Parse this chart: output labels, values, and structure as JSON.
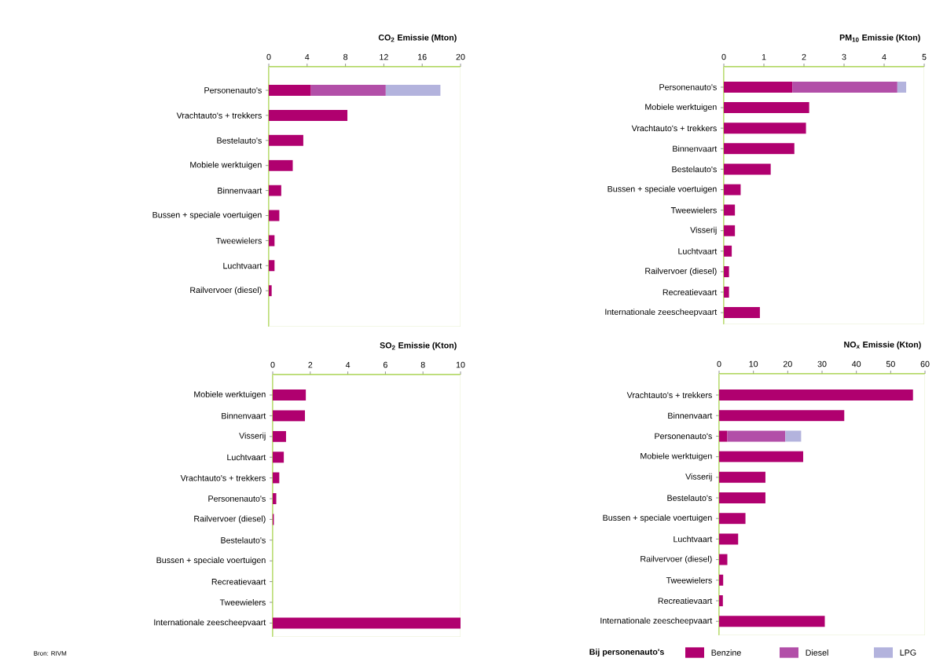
{
  "chart_data": [
    {
      "type": "bar",
      "orientation": "horizontal",
      "stacked": true,
      "title": "CO$_{2}$ Emissie (Mton)",
      "categories": [
        "Personenauto's",
        "Vrachtauto's + trekkers",
        "Bestelauto's",
        "Mobiele werktuigen",
        "Binnenvaart",
        "Bussen + speciale voertuigen",
        "Tweewielers",
        "Luchtvaart",
        "Railvervoer (diesel)"
      ],
      "series": [
        {
          "color": "#b0006f",
          "values": [
            4.4,
            8.2,
            3.6,
            2.5,
            1.3,
            1.1,
            0.6,
            0.6,
            0.3
          ]
        },
        {
          "color": "#b24fa8",
          "values": [
            7.8,
            null,
            null,
            null,
            null,
            null,
            null,
            null,
            null
          ]
        },
        {
          "color": "#b3b3dd",
          "values": [
            5.7,
            null,
            null,
            null,
            null,
            null,
            null,
            null,
            null
          ]
        }
      ],
      "xlim": [
        0,
        20
      ],
      "xticks": [
        0,
        4,
        8,
        12,
        16,
        20
      ]
    },
    {
      "type": "bar",
      "orientation": "horizontal",
      "stacked": true,
      "title": "PM$_{10}$ Emissie (Kton)",
      "categories": [
        "Personenauto's",
        "Mobiele werktuigen",
        "Vrachtauto's + trekkers",
        "Binnenvaart",
        "Bestelauto's",
        "Bussen + speciale voertuigen",
        "Tweewielers",
        "Visserij",
        "Luchtvaart",
        "Railvervoer (diesel)",
        "Recreatievaart",
        "Internationale zeescheepvaart"
      ],
      "series": [
        {
          "color": "#b0006f",
          "values": [
            1.71,
            2.13,
            2.05,
            1.76,
            1.17,
            0.42,
            0.28,
            0.28,
            0.2,
            0.13,
            0.13,
            0.9
          ]
        },
        {
          "color": "#b24fa8",
          "values": [
            2.62,
            null,
            null,
            null,
            null,
            null,
            null,
            null,
            null,
            null,
            null,
            null
          ]
        },
        {
          "color": "#b3b3dd",
          "values": [
            0.22,
            null,
            null,
            null,
            null,
            null,
            null,
            null,
            null,
            null,
            null,
            null
          ]
        }
      ],
      "xlim": [
        0,
        5
      ],
      "xticks": [
        0,
        1,
        2,
        3,
        4,
        5
      ]
    },
    {
      "type": "bar",
      "orientation": "horizontal",
      "stacked": true,
      "title": "SO$_{2}$ Emissie (Kton)",
      "categories": [
        "Mobiele werktuigen",
        "Binnenvaart",
        "Visserij",
        "Luchtvaart",
        "Vrachtauto's + trekkers",
        "Personenauto's",
        "Railvervoer (diesel)",
        "Bestelauto's",
        "Bussen + speciale voertuigen",
        "Recreatievaart",
        "Tweewielers",
        "Internationale zeescheepvaart"
      ],
      "series": [
        {
          "color": "#b0006f",
          "values": [
            1.77,
            1.72,
            0.71,
            0.6,
            0.35,
            0.19,
            0.06,
            0,
            0,
            0,
            0,
            10
          ]
        }
      ],
      "xlim": [
        0,
        10
      ],
      "xticks": [
        0,
        2,
        4,
        6,
        8,
        10
      ],
      "annotations": [
        "Bron: RIVM"
      ]
    },
    {
      "type": "bar",
      "orientation": "horizontal",
      "stacked": true,
      "title": "NO$_{x}$ Emissie (Kton)",
      "categories": [
        "Vrachtauto's + trekkers",
        "Binnenvaart",
        "Personenauto's",
        "Mobiele werktuigen",
        "Visserij",
        "Bestelauto's",
        "Bussen + speciale voertuigen",
        "Luchtvaart",
        "Railvervoer (diesel)",
        "Tweewielers",
        "Recreatievaart",
        "Internationale zeescheepvaart"
      ],
      "series": [
        {
          "name": "Benzine",
          "color": "#b0006f",
          "values": [
            56.5,
            36.5,
            2.4,
            24.5,
            13.5,
            13.5,
            7.7,
            5.6,
            2.4,
            1.2,
            1.1,
            30.8
          ]
        },
        {
          "name": "Diesel",
          "color": "#b24fa8",
          "values": [
            null,
            null,
            16.9,
            null,
            null,
            null,
            null,
            null,
            null,
            null,
            null,
            null
          ]
        },
        {
          "name": "LPG",
          "color": "#b3b3dd",
          "values": [
            null,
            null,
            4.6,
            null,
            null,
            null,
            null,
            null,
            null,
            null,
            null,
            null
          ]
        }
      ],
      "xlim": [
        0,
        60
      ],
      "xticks": [
        0,
        10,
        20,
        30,
        40,
        50,
        60
      ],
      "legend": "bottom",
      "legend_title": "Bij personenauto's"
    }
  ]
}
